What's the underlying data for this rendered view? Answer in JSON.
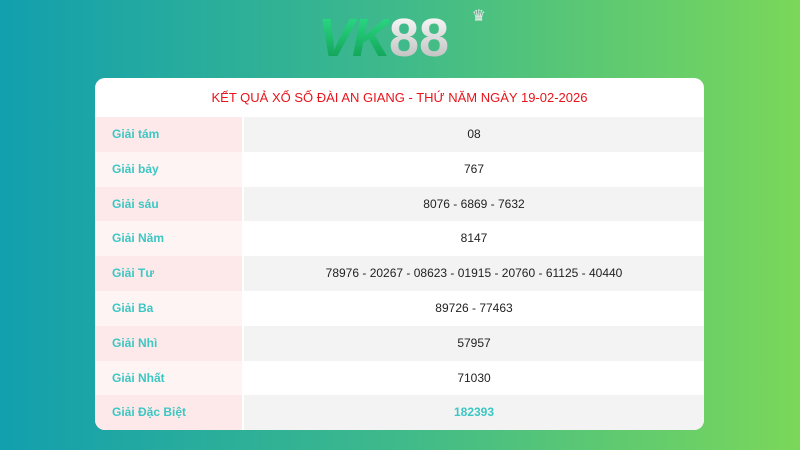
{
  "logo": {
    "text": "VK88",
    "part1": "VK",
    "part2": "88"
  },
  "title": "KẾT QUẢ XỔ SỐ ĐÀI AN GIANG - THỨ NĂM NGÀY 19-02-2026",
  "rows": [
    {
      "label": "Giải tám",
      "value": "08"
    },
    {
      "label": "Giải bảy",
      "value": "767"
    },
    {
      "label": "Giải sáu",
      "value": "8076 - 6869 - 7632"
    },
    {
      "label": "Giải Năm",
      "value": "8147"
    },
    {
      "label": "Giải Tư",
      "value": "78976 - 20267 - 08623 - 01915 - 20760 - 61125 - 40440"
    },
    {
      "label": "Giải Ba",
      "value": "89726 - 77463"
    },
    {
      "label": "Giải Nhì",
      "value": "57957"
    },
    {
      "label": "Giải Nhất",
      "value": "71030"
    },
    {
      "label": "Giải Đặc Biệt",
      "value": "182393"
    }
  ],
  "colors": {
    "title": "#e8141b",
    "label": "#3cc7c3",
    "special": "#3cc7c3"
  }
}
